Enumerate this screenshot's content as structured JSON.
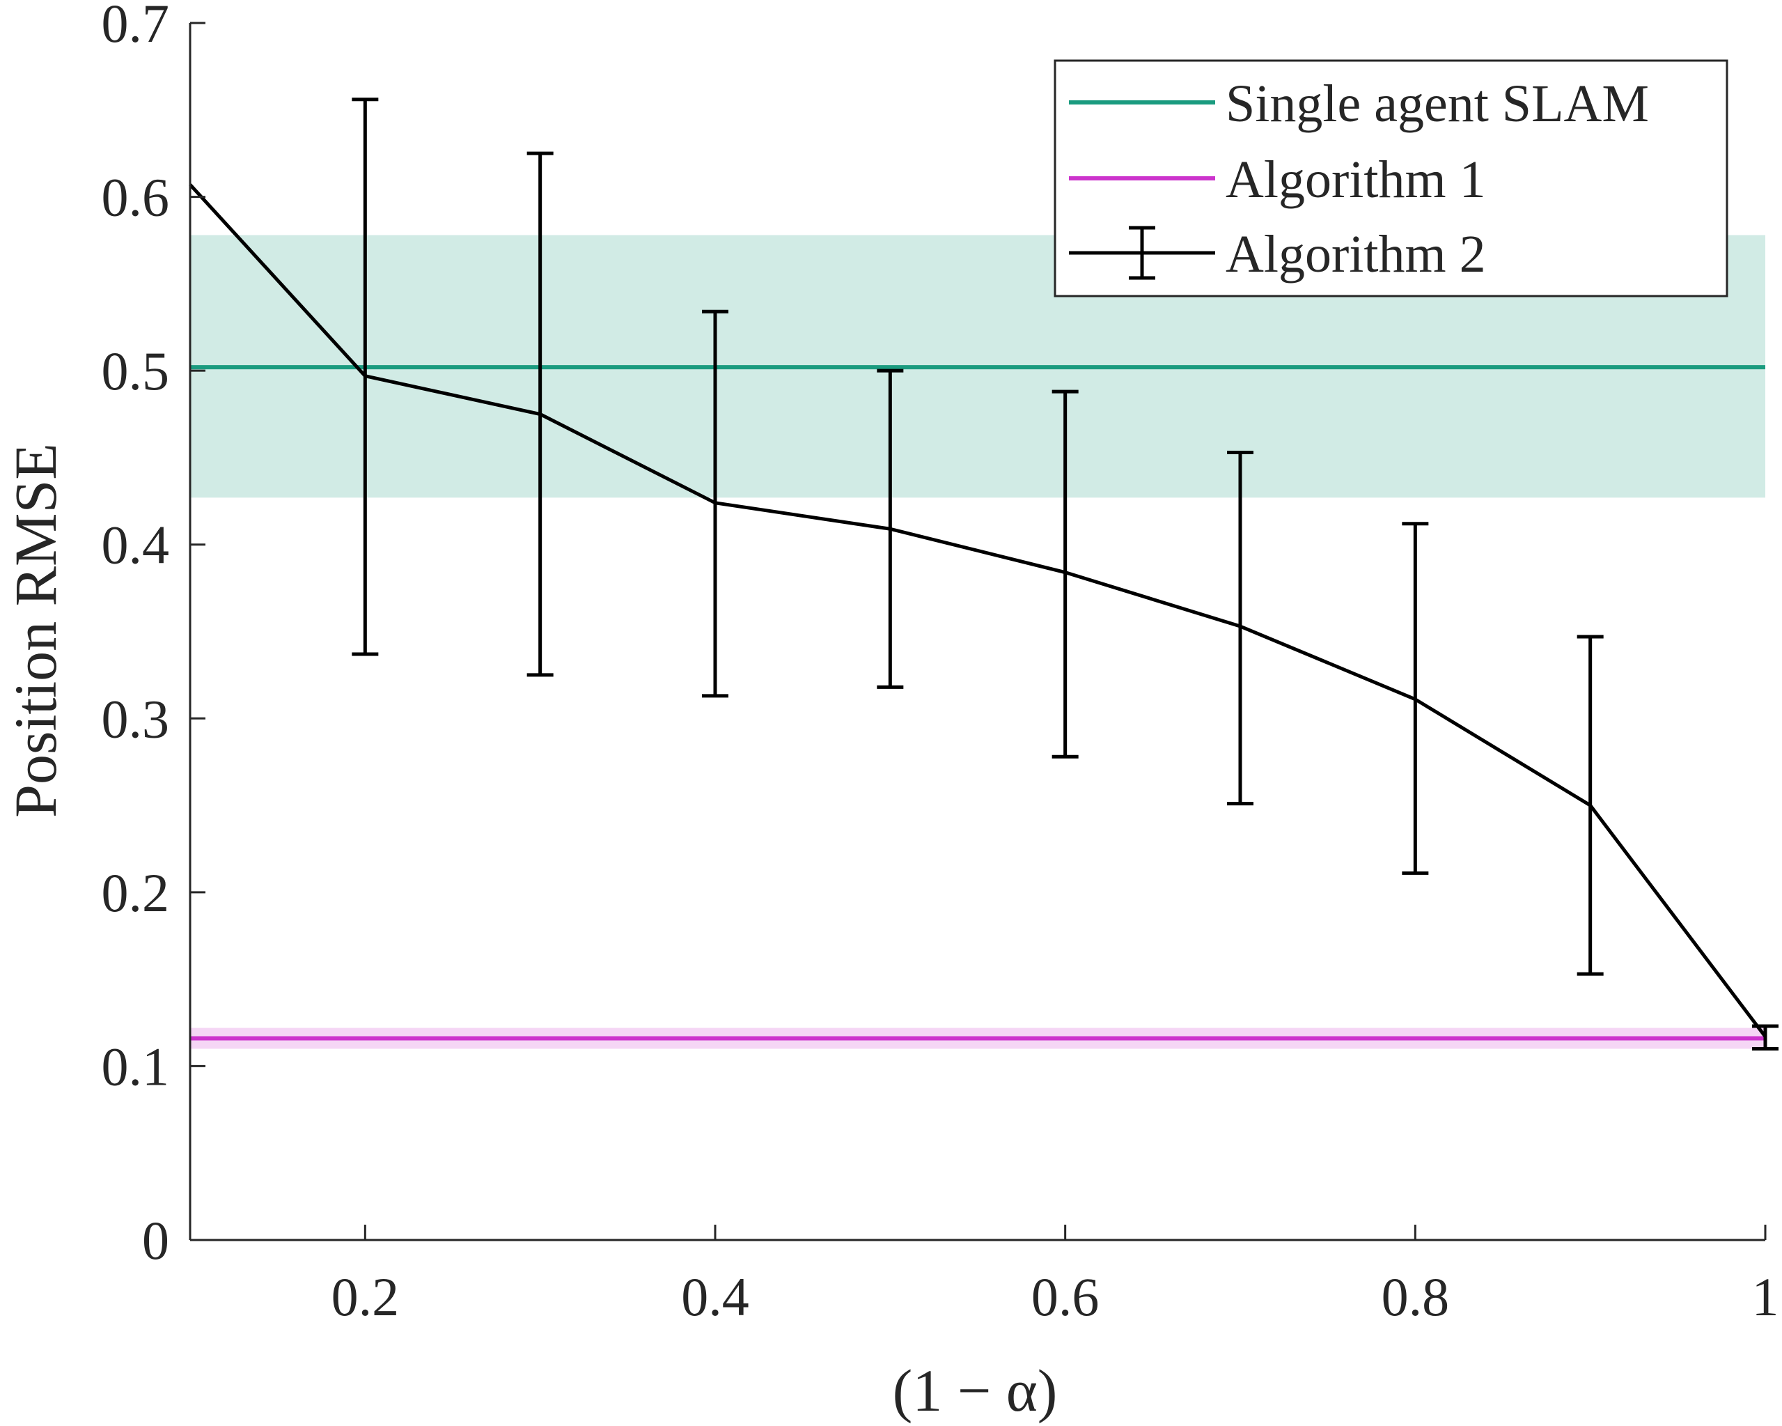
{
  "chart_data": {
    "type": "line",
    "xlabel": "(1 − α)",
    "ylabel": "Position RMSE",
    "xlim": [
      0.1,
      1.0
    ],
    "ylim": [
      0,
      0.7
    ],
    "xticks": [
      0.2,
      0.4,
      0.6,
      0.8,
      1.0
    ],
    "xtick_labels": [
      "0.2",
      "0.4",
      "0.6",
      "0.8",
      "1"
    ],
    "yticks": [
      0,
      0.1,
      0.2,
      0.3,
      0.4,
      0.5,
      0.6,
      0.7
    ],
    "ytick_labels": [
      "0",
      "0.1",
      "0.2",
      "0.3",
      "0.4",
      "0.5",
      "0.6",
      "0.7"
    ],
    "grid": false,
    "legend_position": "top-right",
    "series": [
      {
        "name": "Single agent SLAM",
        "kind": "hline",
        "color": "#1a9b7f",
        "value": 0.502,
        "band": [
          0.427,
          0.578
        ]
      },
      {
        "name": "Algorithm 1",
        "kind": "hline",
        "color": "#cc33cc",
        "value": 0.116,
        "band": [
          0.11,
          0.122
        ]
      },
      {
        "name": "Algorithm 2",
        "kind": "errorbar",
        "color": "#000000",
        "x": [
          0.1,
          0.2,
          0.3,
          0.4,
          0.5,
          0.6,
          0.7,
          0.8,
          0.9,
          1.0
        ],
        "y": [
          0.607,
          0.497,
          0.475,
          0.424,
          0.409,
          0.384,
          0.353,
          0.311,
          0.25,
          0.117
        ],
        "lower": [
          null,
          0.337,
          0.325,
          0.313,
          0.318,
          0.278,
          0.251,
          0.211,
          0.153,
          0.11
        ],
        "upper": [
          null,
          0.656,
          0.625,
          0.534,
          0.5,
          0.488,
          0.453,
          0.412,
          0.347,
          0.123
        ]
      }
    ]
  }
}
